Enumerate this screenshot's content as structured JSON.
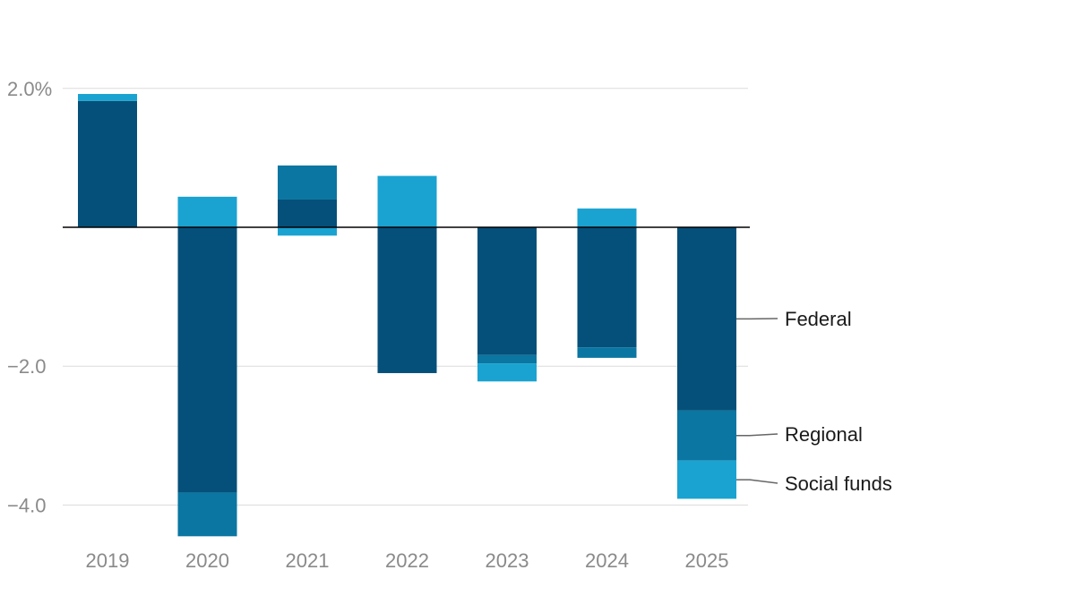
{
  "chart_data": {
    "type": "bar",
    "stacked": true,
    "title": "",
    "xlabel": "",
    "ylabel": "",
    "categories": [
      "2019",
      "2020",
      "2021",
      "2022",
      "2023",
      "2024",
      "2025"
    ],
    "series": [
      {
        "name": "Federal",
        "color": "#05507a",
        "values": [
          1.82,
          -3.82,
          0.4,
          -2.1,
          -1.84,
          -1.73,
          -2.64
        ]
      },
      {
        "name": "Regional",
        "color": "#0a76a1",
        "values": [
          0.0,
          -0.63,
          0.49,
          0.0,
          -0.12,
          -0.15,
          -0.72
        ]
      },
      {
        "name": "Social funds",
        "color": "#1aa3d0",
        "values": [
          0.1,
          0.44,
          -0.12,
          0.74,
          -0.26,
          0.27,
          -0.55
        ]
      }
    ],
    "ylim": [
      -4.6,
      2.0
    ],
    "y_ticks": [
      {
        "value": 2.0,
        "label": "2.0%"
      },
      {
        "value": -2.0,
        "label": "−2.0"
      },
      {
        "value": -4.0,
        "label": "−4.0"
      }
    ],
    "grid": true,
    "legend": "right, labels beside the 2025 bar"
  }
}
